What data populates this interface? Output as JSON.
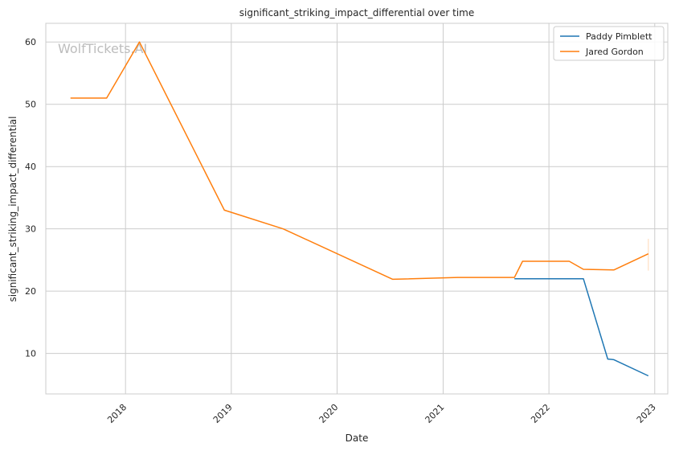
{
  "chart_data": {
    "type": "line",
    "title": "significant_striking_impact_differential over time",
    "xlabel": "Date",
    "ylabel": "significant_striking_impact_differential",
    "watermark": "WolfTickets.AI",
    "x_ticks": [
      "2018",
      "2019",
      "2020",
      "2021",
      "2022",
      "2023"
    ],
    "y_ticks": [
      10,
      20,
      30,
      40,
      50,
      60
    ],
    "xlim": [
      "2017-04-01",
      "2023-02-15"
    ],
    "ylim": [
      3.5,
      63
    ],
    "grid": true,
    "legend_position": "top-right",
    "series": [
      {
        "name": "Paddy Pimblett",
        "color": "#1f77b4",
        "points": [
          [
            "2021-09-04",
            22.0
          ],
          [
            "2022-03-19",
            22.0
          ],
          [
            "2022-04-30",
            22.0
          ],
          [
            "2022-07-23",
            9.1
          ],
          [
            "2022-08-13",
            9.0
          ],
          [
            "2022-12-10",
            6.4
          ]
        ]
      },
      {
        "name": "Jared Gordon",
        "color": "#ff7f0e",
        "points": [
          [
            "2017-06-25",
            51.0
          ],
          [
            "2017-10-28",
            51.0
          ],
          [
            "2018-02-18",
            60.0
          ],
          [
            "2018-12-08",
            33.0
          ],
          [
            "2019-06-29",
            30.0
          ],
          [
            "2020-07-11",
            21.9
          ],
          [
            "2021-02-20",
            22.2
          ],
          [
            "2021-09-04",
            22.2
          ],
          [
            "2021-10-02",
            24.8
          ],
          [
            "2022-03-12",
            24.8
          ],
          [
            "2022-04-30",
            23.5
          ],
          [
            "2022-08-13",
            23.4
          ],
          [
            "2022-12-10",
            26.0
          ]
        ],
        "error_band": {
          "x": "2022-12-10",
          "low": 23.3,
          "high": 28.4
        }
      }
    ]
  }
}
